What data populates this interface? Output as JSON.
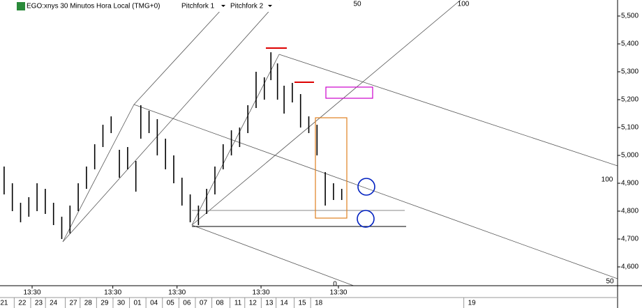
{
  "chart_data": {
    "type": "hl-bars",
    "title": "EGO:xnys 30 Minutos Hora Local (TMG+0)",
    "menu": [
      "Pitchfork 1",
      "Pitchfork 2"
    ],
    "fork_labels": [
      "50",
      "100",
      "0",
      "100",
      "50",
      "0"
    ],
    "color": "#000000",
    "x": [
      0,
      0.5,
      1,
      1.5,
      2,
      2.5,
      3,
      3.5,
      4,
      4.5,
      5,
      5.5,
      6,
      6.5,
      7,
      7.5,
      8,
      8.3,
      8.8,
      9.3,
      9.8,
      10.3,
      10.8,
      11.3,
      11.8,
      12.3,
      12.8,
      13.3,
      13.8,
      14.3,
      14.8,
      15.3,
      15.8,
      16.2,
      16.6,
      17,
      17.5,
      18,
      18.5,
      19,
      19.5,
      20,
      20.5
    ],
    "high": [
      4960,
      4900,
      4830,
      4850,
      4900,
      4880,
      4830,
      4780,
      4820,
      4900,
      4960,
      5040,
      5110,
      5140,
      5020,
      5030,
      4980,
      5180,
      5160,
      5130,
      5060,
      5000,
      4920,
      4860,
      4820,
      4880,
      4960,
      5040,
      5090,
      5100,
      5180,
      5300,
      5280,
      5370,
      5330,
      5250,
      5260,
      5220,
      5140,
      5110,
      4940,
      4900,
      4880
    ],
    "low": [
      4860,
      4800,
      4760,
      4780,
      4800,
      4790,
      4750,
      4700,
      4720,
      4800,
      4880,
      4950,
      5030,
      5080,
      4920,
      4950,
      4870,
      5060,
      5080,
      5000,
      4950,
      4900,
      4820,
      4760,
      4750,
      4790,
      4860,
      4950,
      5000,
      5030,
      5080,
      5170,
      5200,
      5270,
      5200,
      5150,
      5190,
      5100,
      5080,
      5000,
      4820,
      4840,
      4840
    ],
    "xlim": [
      -0.25,
      37.25
    ],
    "ylim": [
      4532.5,
      5557.5
    ],
    "yticks": [
      {
        "value": 4600,
        "label": "4,600"
      },
      {
        "value": 4700,
        "label": "4,700"
      },
      {
        "value": 4800,
        "label": "4,800"
      },
      {
        "value": 4900,
        "label": "4,900"
      },
      {
        "value": 5000,
        "label": "5,000"
      },
      {
        "value": 5100,
        "label": "5,100"
      },
      {
        "value": 5200,
        "label": "5,200"
      },
      {
        "value": 5300,
        "label": "5,300"
      },
      {
        "value": 5400,
        "label": "5,400"
      },
      {
        "value": 5500,
        "label": "5,500"
      }
    ],
    "time_ticks": [
      {
        "value": 1.7,
        "label": "13:30"
      },
      {
        "value": 6.6,
        "label": "13:30"
      },
      {
        "value": 10.5,
        "label": "13:30"
      },
      {
        "value": 15.6,
        "label": "13:30"
      },
      {
        "value": 20.3,
        "label": "13:30"
      }
    ],
    "xticks": [
      {
        "value": 0,
        "label": "21"
      },
      {
        "value": 1.1,
        "label": "22"
      },
      {
        "value": 2.1,
        "label": "23"
      },
      {
        "value": 3,
        "label": "24"
      },
      {
        "value": 4.2,
        "label": "27"
      },
      {
        "value": 5.1,
        "label": "28"
      },
      {
        "value": 6.1,
        "label": "29"
      },
      {
        "value": 7.1,
        "label": "30"
      },
      {
        "value": 8.1,
        "label": "01"
      },
      {
        "value": 9.1,
        "label": "04"
      },
      {
        "value": 10.1,
        "label": "05"
      },
      {
        "value": 11.1,
        "label": "06"
      },
      {
        "value": 12.1,
        "label": "07"
      },
      {
        "value": 13.1,
        "label": "08"
      },
      {
        "value": 14.2,
        "label": "11"
      },
      {
        "value": 15.1,
        "label": "12"
      },
      {
        "value": 16.1,
        "label": "13"
      },
      {
        "value": 17,
        "label": "14"
      },
      {
        "value": 18.1,
        "label": "15"
      },
      {
        "value": 19.1,
        "label": "18"
      },
      {
        "value": 28.4,
        "label": "19"
      }
    ]
  }
}
